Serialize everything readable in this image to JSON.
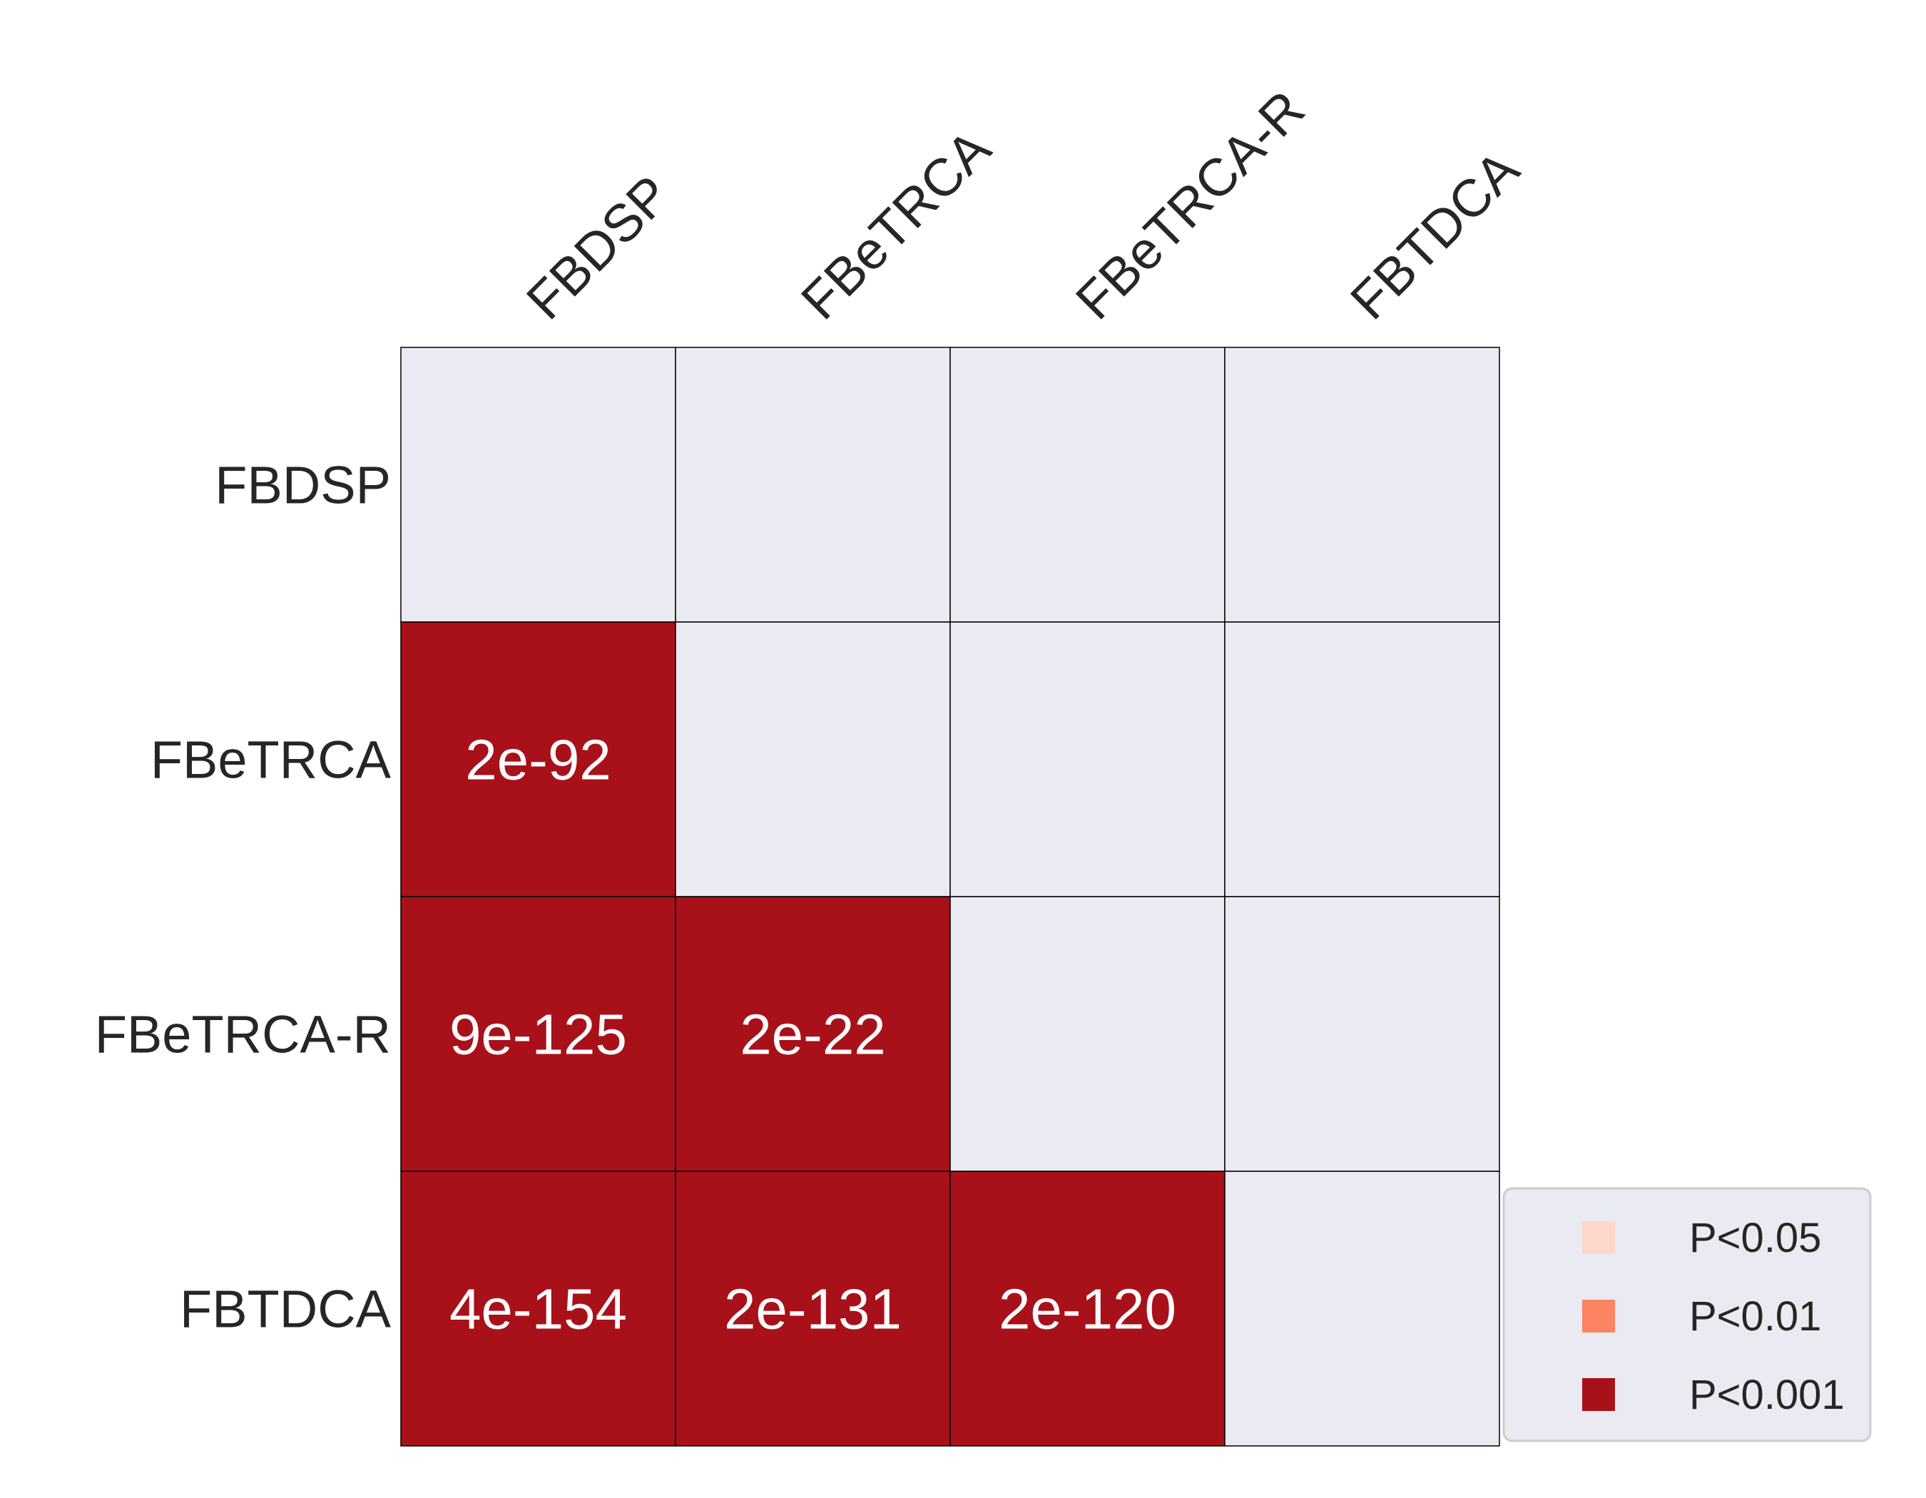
{
  "chart_data": {
    "type": "heatmap",
    "title": "",
    "xlabel": "",
    "ylabel": "",
    "x_categories": [
      "FBDSP",
      "FBeTRCA",
      "FBeTRCA-R",
      "FBTDCA"
    ],
    "y_categories": [
      "FBDSP",
      "FBeTRCA",
      "FBeTRCA-R",
      "FBTDCA"
    ],
    "cells": [
      [
        "",
        "",
        "",
        ""
      ],
      [
        "2e-92",
        "",
        "",
        ""
      ],
      [
        "9e-125",
        "2e-22",
        "",
        ""
      ],
      [
        "4e-154",
        "2e-131",
        "2e-120",
        ""
      ]
    ],
    "significance": [
      [
        "none",
        "none",
        "none",
        "none"
      ],
      [
        "p001",
        "none",
        "none",
        "none"
      ],
      [
        "p001",
        "p001",
        "none",
        "none"
      ],
      [
        "p001",
        "p001",
        "p001",
        "none"
      ]
    ],
    "legend": {
      "placement": "bottom-right",
      "entries": [
        {
          "key": "p05",
          "label": "P<0.05",
          "color": "#fdd7c9"
        },
        {
          "key": "p01",
          "label": "P<0.01",
          "color": "#fc8462"
        },
        {
          "key": "p001",
          "label": "P<0.001",
          "color": "#a81119"
        }
      ]
    },
    "colors": {
      "none": "#eaeaf2",
      "grid_line": "#000000",
      "text_on_cell": "#ffffff",
      "legend_bg": "#eaeaf2",
      "legend_border": "#cccccc"
    }
  }
}
